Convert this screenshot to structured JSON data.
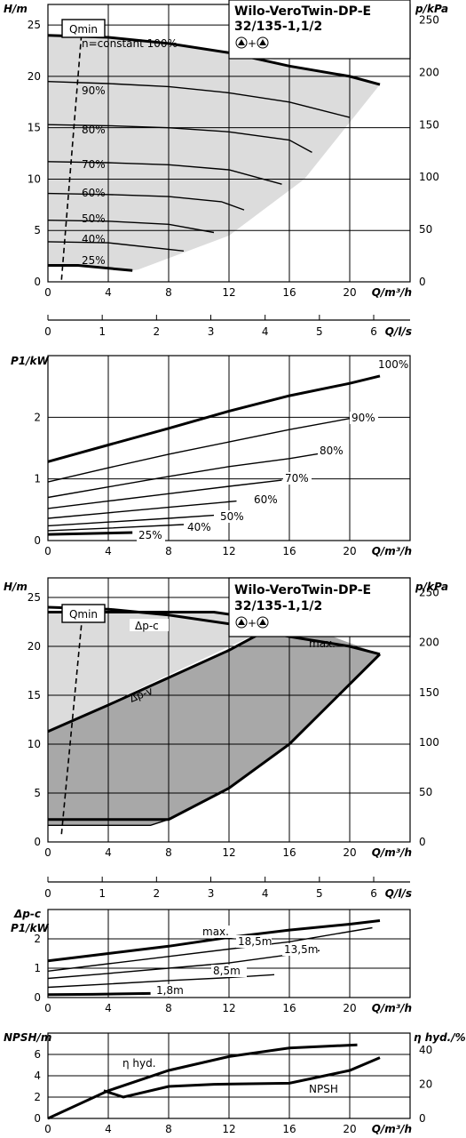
{
  "chart_data": [
    {
      "id": "hq",
      "type": "line",
      "title": "Wilo-VeroTwin-DP-E",
      "subtitle": "32/135-1,1/2",
      "subtitle2": "+",
      "xlabel": "Q/m³/h",
      "ylabel": "H/m",
      "y2label": "p/kPa",
      "xlim": [
        0,
        24
      ],
      "ylim": [
        0,
        27
      ],
      "xticks": [
        "0",
        "4",
        "8",
        "12",
        "16",
        "20"
      ],
      "yticks": [
        "0",
        "5",
        "10",
        "15",
        "20",
        "25"
      ],
      "y2ticks": [
        "0",
        "50",
        "100",
        "150",
        "200",
        "250"
      ],
      "qmin_label": "Qmin",
      "n_constant_label": "n=constant 100%",
      "series": [
        {
          "name": "100%",
          "x": [
            0,
            4,
            8,
            12,
            16,
            20,
            22
          ],
          "y": [
            24,
            23.8,
            23.2,
            22.3,
            21,
            20,
            19.2
          ]
        },
        {
          "name": "90%",
          "x": [
            0,
            4,
            8,
            12,
            16,
            20
          ],
          "y": [
            19.5,
            19.3,
            19,
            18.4,
            17.5,
            16
          ]
        },
        {
          "name": "80%",
          "x": [
            0,
            4,
            8,
            12,
            16,
            17.5
          ],
          "y": [
            15.3,
            15.2,
            15,
            14.6,
            13.8,
            12.6
          ]
        },
        {
          "name": "70%",
          "x": [
            0,
            4,
            8,
            12,
            15.5
          ],
          "y": [
            11.7,
            11.6,
            11.4,
            10.9,
            9.5
          ]
        },
        {
          "name": "60%",
          "x": [
            0,
            4,
            8,
            11.5,
            13
          ],
          "y": [
            8.6,
            8.5,
            8.3,
            7.8,
            7
          ]
        },
        {
          "name": "50%",
          "x": [
            0,
            4,
            8,
            11
          ],
          "y": [
            6,
            5.9,
            5.6,
            4.8
          ]
        },
        {
          "name": "40%",
          "x": [
            0,
            4,
            9
          ],
          "y": [
            3.9,
            3.8,
            3
          ]
        },
        {
          "name": "25%",
          "x": [
            0,
            2,
            5.6
          ],
          "y": [
            1.6,
            1.6,
            1.1
          ]
        }
      ]
    },
    {
      "id": "ls",
      "type": "axis",
      "xlabel": "Q/l/s",
      "xlim": [
        0,
        6.67
      ],
      "xticks": [
        "0",
        "1",
        "2",
        "3",
        "4",
        "5",
        "6"
      ]
    },
    {
      "id": "p1",
      "type": "line",
      "xlabel": "Q/m³/h",
      "ylabel": "P1/kW",
      "xlim": [
        0,
        24
      ],
      "ylim": [
        0,
        3
      ],
      "xticks": [
        "0",
        "4",
        "8",
        "12",
        "16",
        "20"
      ],
      "yticks": [
        "0",
        "1",
        "2"
      ],
      "series": [
        {
          "name": "100%",
          "x": [
            0,
            4,
            8,
            12,
            16,
            20,
            22
          ],
          "y": [
            1.28,
            1.55,
            1.82,
            2.1,
            2.35,
            2.55,
            2.67
          ]
        },
        {
          "name": "90%",
          "x": [
            0,
            4,
            8,
            12,
            16,
            20
          ],
          "y": [
            0.95,
            1.18,
            1.4,
            1.6,
            1.8,
            1.98
          ]
        },
        {
          "name": "80%",
          "x": [
            0,
            4,
            8,
            12,
            16,
            18
          ],
          "y": [
            0.7,
            0.87,
            1.04,
            1.2,
            1.33,
            1.41
          ]
        },
        {
          "name": "70%",
          "x": [
            0,
            4,
            8,
            12,
            15.5
          ],
          "y": [
            0.52,
            0.64,
            0.76,
            0.88,
            0.98
          ]
        },
        {
          "name": "60%",
          "x": [
            0,
            4,
            8,
            12.5
          ],
          "y": [
            0.36,
            0.45,
            0.54,
            0.64
          ]
        },
        {
          "name": "50%",
          "x": [
            0,
            4,
            8,
            11
          ],
          "y": [
            0.24,
            0.3,
            0.36,
            0.41
          ]
        },
        {
          "name": "40%",
          "x": [
            0,
            4,
            9
          ],
          "y": [
            0.16,
            0.2,
            0.26
          ]
        },
        {
          "name": "25%",
          "x": [
            0,
            2,
            5.6
          ],
          "y": [
            0.1,
            0.11,
            0.13
          ]
        }
      ]
    },
    {
      "id": "hq2",
      "type": "area",
      "title": "Wilo-VeroTwin-DP-E",
      "subtitle": "32/135-1,1/2",
      "subtitle2": "+",
      "xlabel": "Q/m³/h",
      "ylabel": "H/m",
      "y2label": "p/kPa",
      "xlim": [
        0,
        24
      ],
      "ylim": [
        0,
        27
      ],
      "xticks": [
        "0",
        "4",
        "8",
        "12",
        "16",
        "20"
      ],
      "yticks": [
        "0",
        "5",
        "10",
        "15",
        "20",
        "25"
      ],
      "y2ticks": [
        "0",
        "50",
        "100",
        "150",
        "200",
        "250"
      ],
      "qmin_label": "Qmin",
      "series": [
        {
          "name": "Δp-c",
          "x": [
            0,
            11,
            15.5
          ],
          "y": [
            23.5,
            23.5,
            22.5
          ]
        },
        {
          "name": "max.",
          "x": [
            0,
            4,
            8,
            12,
            16,
            20,
            22
          ],
          "y": [
            24,
            23.8,
            23.2,
            22.3,
            21,
            20,
            19.2
          ]
        },
        {
          "name": "Δp-v",
          "x": [
            0,
            4,
            8,
            12,
            15.5
          ],
          "y": [
            11.3,
            14,
            16.8,
            19.6,
            22.5
          ]
        }
      ]
    },
    {
      "id": "ls2",
      "type": "axis",
      "xlabel": "Q/l/s",
      "xlim": [
        0,
        6.67
      ],
      "xticks": [
        "0",
        "1",
        "2",
        "3",
        "4",
        "5",
        "6"
      ]
    },
    {
      "id": "p1b",
      "type": "line",
      "xlabel": "Q/m³/h",
      "ylabel": "Δp-c",
      "ylabel2": "P1/kW",
      "xlim": [
        0,
        24
      ],
      "ylim": [
        0,
        3
      ],
      "xticks": [
        "0",
        "4",
        "8",
        "12",
        "16",
        "20"
      ],
      "yticks": [
        "0",
        "1",
        "2"
      ],
      "series": [
        {
          "name": "max.",
          "x": [
            0,
            4,
            8,
            12,
            16,
            20,
            22
          ],
          "y": [
            1.25,
            1.5,
            1.75,
            2.05,
            2.3,
            2.5,
            2.62
          ]
        },
        {
          "name": "18,5m",
          "x": [
            0,
            4,
            8,
            12,
            16,
            21.5
          ],
          "y": [
            0.9,
            1.15,
            1.4,
            1.65,
            1.9,
            2.38
          ]
        },
        {
          "name": "13,5m",
          "x": [
            0,
            4,
            8,
            12,
            18
          ],
          "y": [
            0.65,
            0.82,
            1.0,
            1.18,
            1.6
          ]
        },
        {
          "name": "8,5m",
          "x": [
            0,
            4,
            8,
            12,
            15
          ],
          "y": [
            0.35,
            0.46,
            0.58,
            0.68,
            0.78
          ]
        },
        {
          "name": "1,8m",
          "x": [
            0,
            3,
            6.8
          ],
          "y": [
            0.1,
            0.11,
            0.14
          ]
        }
      ]
    },
    {
      "id": "npsh",
      "type": "line",
      "xlabel": "Q/m³/h",
      "ylabel": "NPSH/m",
      "y2label": "η hyd./%",
      "xlim": [
        0,
        24
      ],
      "ylim": [
        0,
        8
      ],
      "xticks": [
        "0",
        "4",
        "8",
        "12",
        "16",
        "20"
      ],
      "yticks": [
        "0",
        "2",
        "4",
        "6"
      ],
      "y2ticks": [
        "0",
        "20",
        "40"
      ],
      "series": [
        {
          "name": "η hyd.",
          "x": [
            0,
            4,
            8,
            12,
            16,
            20.5
          ],
          "y": [
            0,
            2.6,
            4.5,
            5.8,
            6.6,
            6.9
          ]
        },
        {
          "name": "NPSH",
          "x": [
            3.7,
            5,
            8,
            11,
            16,
            20,
            22
          ],
          "y": [
            2.6,
            2,
            3,
            3.2,
            3.3,
            4.5,
            5.7
          ]
        }
      ]
    }
  ]
}
